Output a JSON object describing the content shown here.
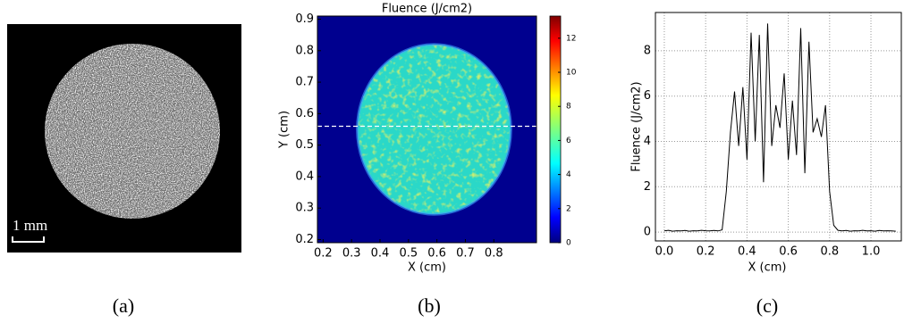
{
  "chart_data": [
    {
      "type": "image",
      "panel_label": "(a)",
      "scale_bar": "1 mm"
    },
    {
      "type": "heatmap",
      "panel_label": "(b)",
      "title": "Fluence (J/cm2)",
      "xlabel": "X (cm)",
      "ylabel": "Y (cm)",
      "xlim": [
        0.18,
        0.95
      ],
      "ylim": [
        0.19,
        0.91
      ],
      "xticks": [
        0.2,
        0.3,
        0.4,
        0.5,
        0.6,
        0.7,
        0.8
      ],
      "yticks": [
        0.2,
        0.3,
        0.4,
        0.5,
        0.6,
        0.7,
        0.8,
        0.9
      ],
      "spot_center": [
        0.59,
        0.55
      ],
      "spot_radius": 0.27,
      "profile_y": 0.56,
      "clim": [
        0,
        13.3
      ],
      "cticks": [
        0,
        2,
        4,
        6,
        8,
        10,
        12
      ]
    },
    {
      "type": "line",
      "panel_label": "(c)",
      "xlabel": "X (cm)",
      "ylabel": "Fluence (J/cm2)",
      "color": "#000000",
      "grid": true,
      "xlim": [
        -0.043,
        1.147
      ],
      "ylim": [
        -0.39,
        9.69
      ],
      "xticks": [
        {
          "value": 0,
          "label": "0.0"
        },
        0.2,
        0.4,
        0.6,
        0.8,
        {
          "value": 1,
          "label": "1.0"
        }
      ],
      "yticks": [
        0,
        2,
        4,
        6,
        8
      ],
      "x": [
        0,
        0.02,
        0.04,
        0.06,
        0.08,
        0.1,
        0.12,
        0.14,
        0.16,
        0.18,
        0.2,
        0.22,
        0.24,
        0.26,
        0.28,
        0.3,
        0.32,
        0.34,
        0.36,
        0.38,
        0.4,
        0.42,
        0.44,
        0.46,
        0.48,
        0.5,
        0.52,
        0.54,
        0.56,
        0.58,
        0.6,
        0.62,
        0.64,
        0.66,
        0.68,
        0.7,
        0.72,
        0.74,
        0.76,
        0.78,
        0.8,
        0.82,
        0.84,
        0.86,
        0.88,
        0.9,
        0.92,
        0.94,
        0.96,
        0.98,
        1,
        1.02,
        1.04,
        1.06,
        1.08,
        1.1,
        1.12
      ],
      "values": [
        0.05,
        0.08,
        0.04,
        0.06,
        0.05,
        0.07,
        0.04,
        0.06,
        0.05,
        0.08,
        0.06,
        0.05,
        0.07,
        0.05,
        0.1,
        1.8,
        4.4,
        6.2,
        3.8,
        6.4,
        3.2,
        8.8,
        4.0,
        8.7,
        2.2,
        9.2,
        3.8,
        5.6,
        4.6,
        7.0,
        3.2,
        5.8,
        3.4,
        9.0,
        2.6,
        8.4,
        4.4,
        5.0,
        4.2,
        5.6,
        1.8,
        0.3,
        0.08,
        0.05,
        0.07,
        0.04,
        0.06,
        0.05,
        0.08,
        0.05,
        0.06,
        0.04,
        0.07,
        0.05,
        0.06,
        0.05,
        0.04
      ]
    }
  ]
}
